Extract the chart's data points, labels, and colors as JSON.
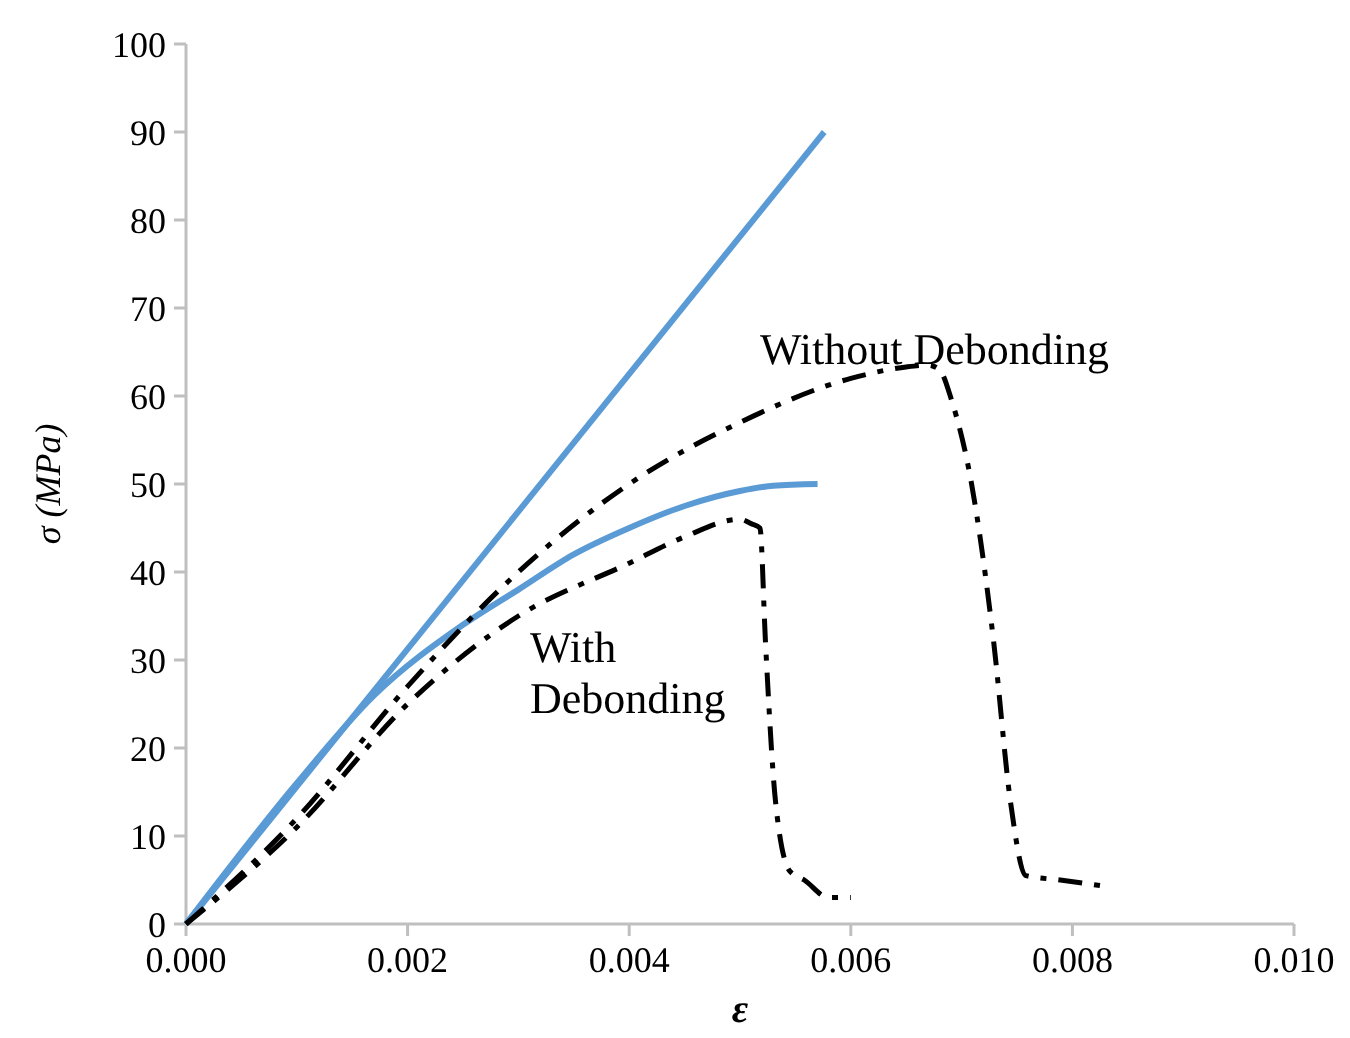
{
  "chart_data": {
    "type": "line",
    "xlabel": "ε",
    "ylabel": "σ (MPa)",
    "xlim": [
      0,
      0.01
    ],
    "ylim": [
      0,
      100
    ],
    "xticks": [
      {
        "value": 0,
        "label": "0.000"
      },
      {
        "value": 0.002,
        "label": "0.002"
      },
      {
        "value": 0.004,
        "label": "0.004"
      },
      {
        "value": 0.006,
        "label": "0.006"
      },
      {
        "value": 0.008,
        "label": "0.008"
      },
      {
        "value": 0.01,
        "label": "0.010"
      }
    ],
    "yticks": [
      0,
      10,
      20,
      30,
      40,
      50,
      60,
      70,
      80,
      90,
      100
    ],
    "grid": false,
    "marker": "none",
    "series": [
      {
        "color": "#5b9bd5",
        "line_style": "solid",
        "x": [
          0,
          0.00576
        ],
        "values": [
          0,
          90
        ]
      },
      {
        "color": "#5b9bd5",
        "line_style": "solid",
        "x": [
          0,
          0.001,
          0.0017,
          0.0025,
          0.003,
          0.0035,
          0.004,
          0.0045,
          0.005,
          0.0053,
          0.0057
        ],
        "values": [
          0,
          16,
          26,
          34,
          38,
          42,
          45,
          47.5,
          49.2,
          49.8,
          50
        ]
      },
      {
        "color": "#000000",
        "line_style": "dashed",
        "x": [
          0,
          0.001,
          0.002,
          0.003,
          0.004,
          0.0045,
          0.005,
          0.0051,
          0.00518,
          0.00523,
          0.00532,
          0.00545,
          0.00558,
          0.0058,
          0.006
        ],
        "values": [
          0,
          11,
          25,
          35,
          41,
          44,
          46,
          45.5,
          45,
          32,
          14,
          6,
          5,
          3,
          3
        ]
      },
      {
        "color": "#000000",
        "line_style": "dashed",
        "x": [
          0,
          0.001,
          0.002,
          0.003,
          0.004,
          0.005,
          0.006,
          0.0065,
          0.0067,
          0.0068,
          0.00691,
          0.00709,
          0.00729,
          0.00744,
          0.00758,
          0.00789,
          0.00829
        ],
        "values": [
          0,
          12,
          27,
          40,
          50,
          57,
          62,
          63.3,
          63.5,
          63,
          59.5,
          50,
          32,
          14,
          5.5,
          5,
          4.3
        ]
      }
    ],
    "annotations": [
      "Without Debonding",
      "With\nDebonding"
    ]
  }
}
